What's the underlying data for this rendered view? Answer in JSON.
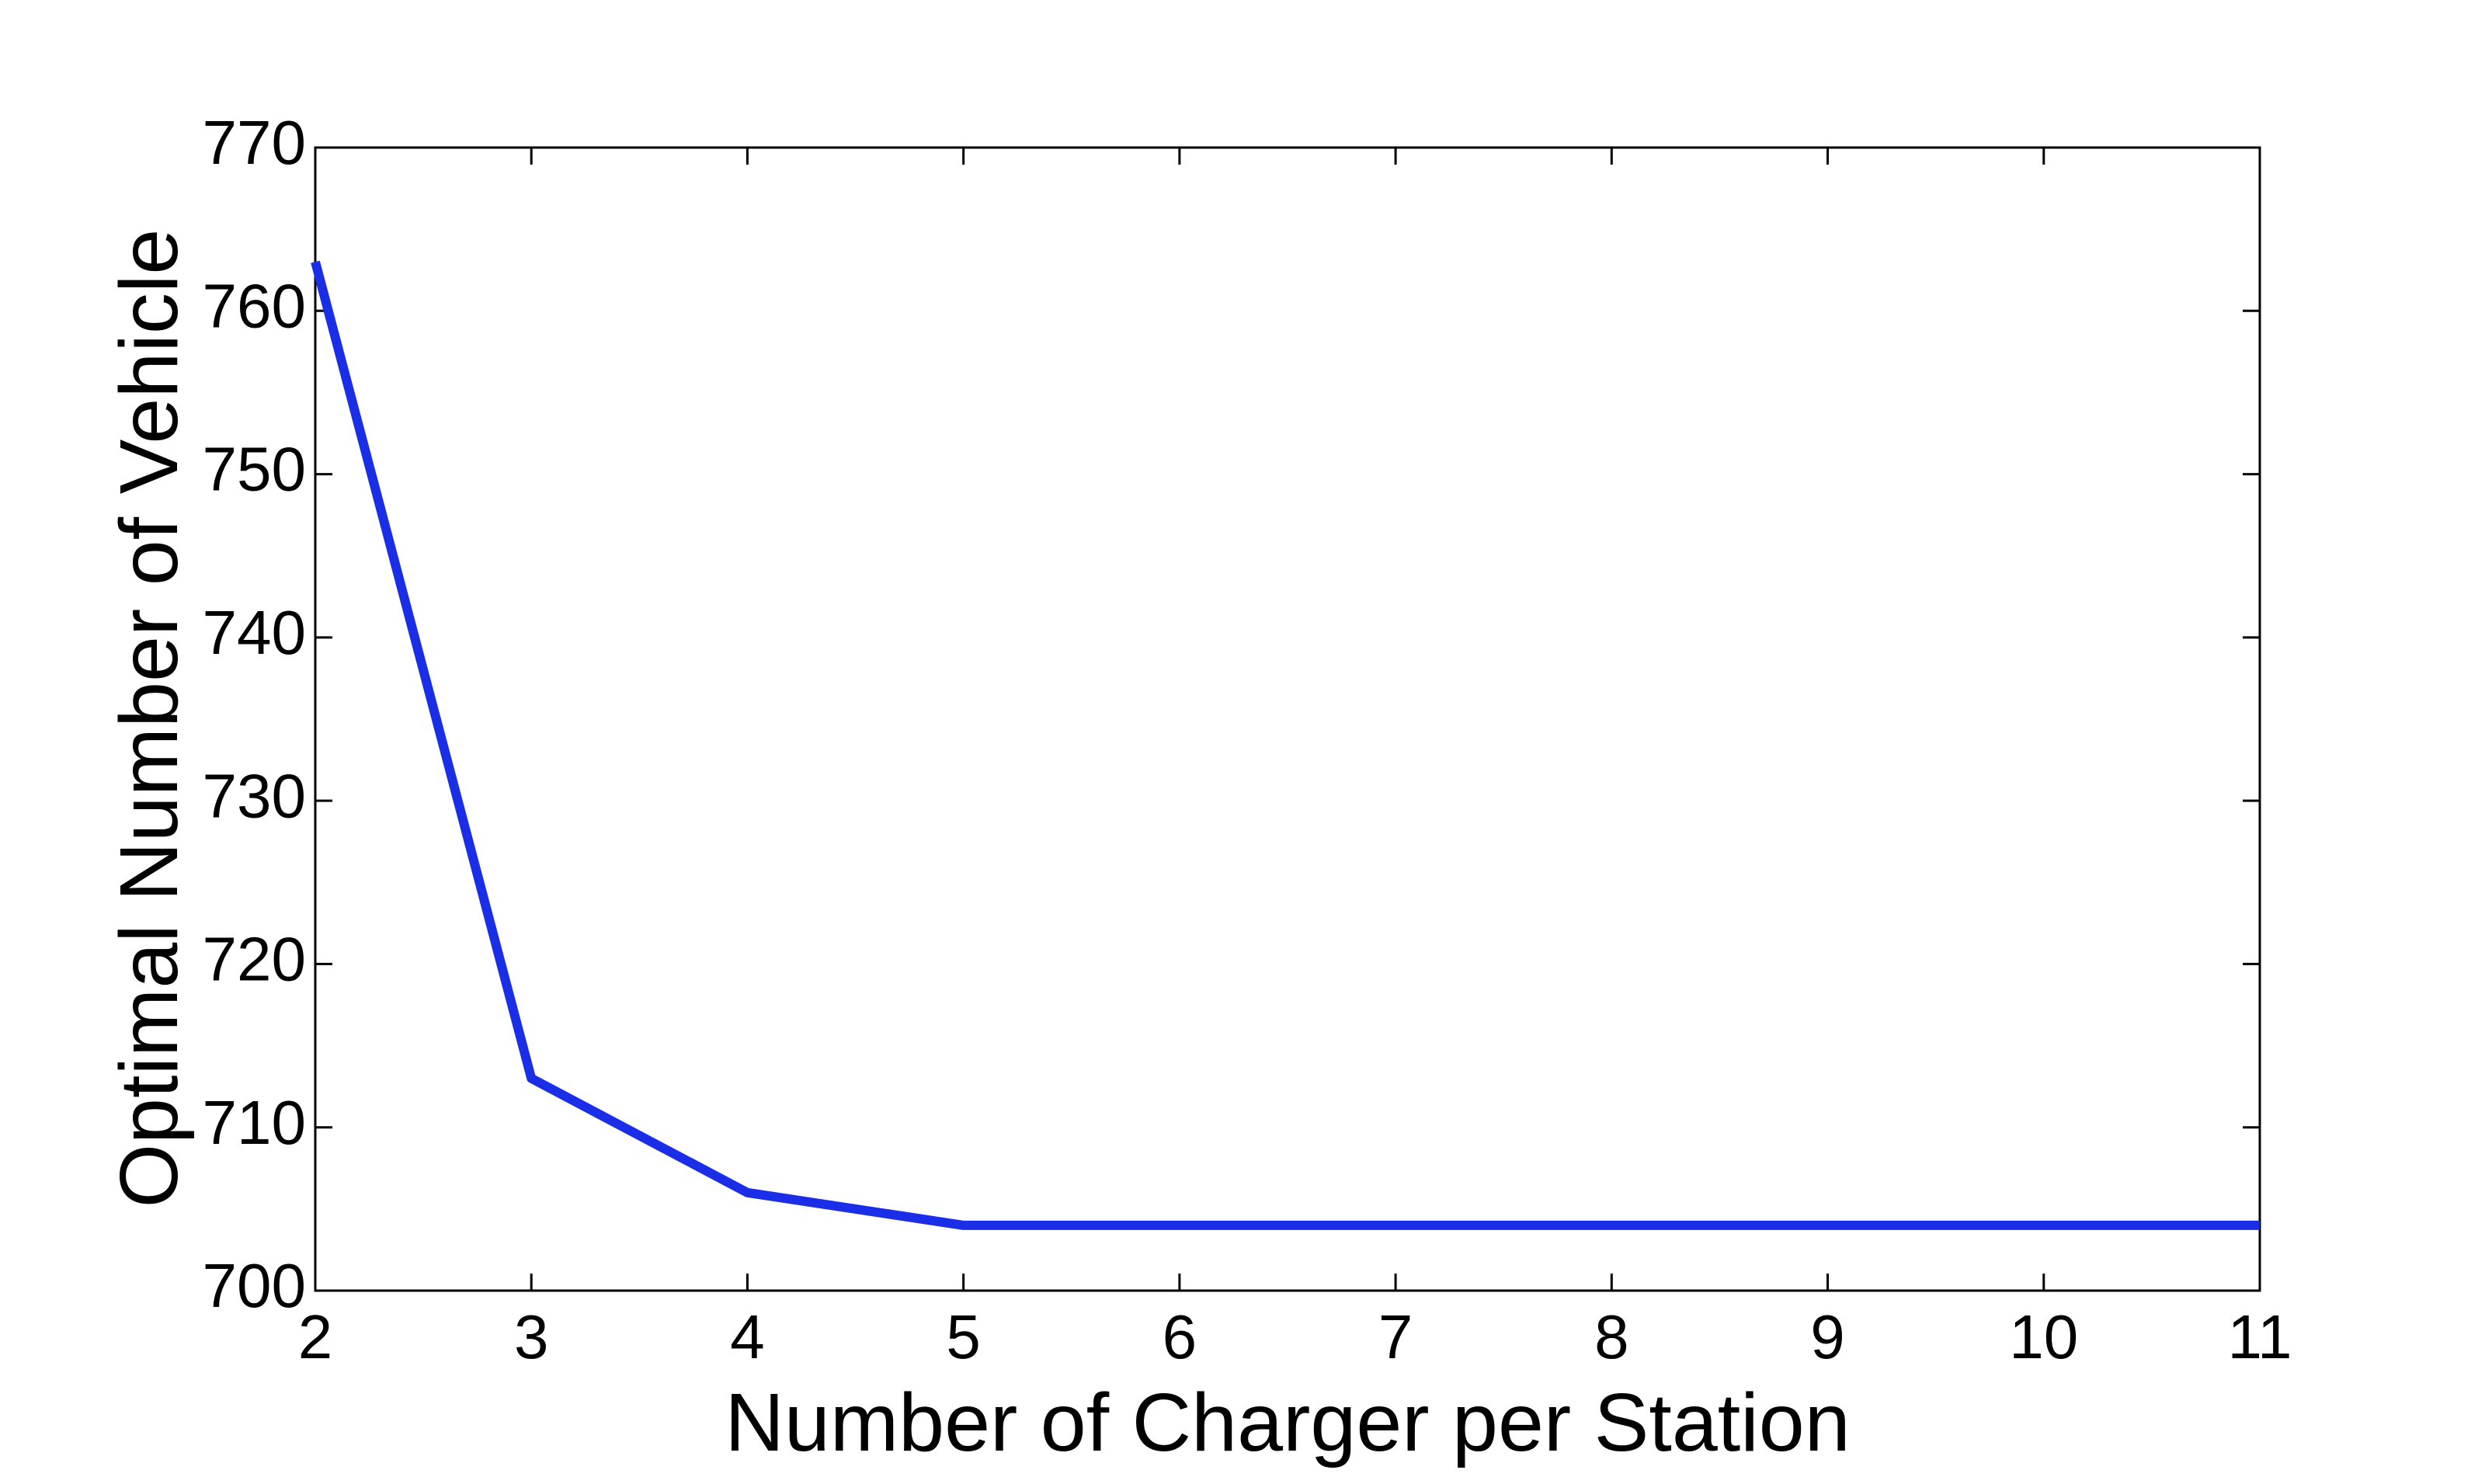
{
  "chart_data": {
    "type": "line",
    "xlabel": "Number of Charger per Station",
    "ylabel": "Optimal Number of Vehicle",
    "x": [
      2,
      3,
      4,
      5,
      6,
      7,
      8,
      9,
      10,
      11
    ],
    "series": [
      {
        "name": "Optimal Number of Vehicle",
        "color": "#1a2ee8",
        "values": [
          763,
          713,
          706,
          704,
          704,
          704,
          704,
          704,
          704,
          704
        ]
      }
    ],
    "xlim": [
      2,
      11
    ],
    "xticks": [
      2,
      3,
      4,
      5,
      6,
      7,
      8,
      9,
      10,
      11
    ],
    "ylim": [
      700,
      770
    ],
    "yticks": [
      700,
      710,
      720,
      730,
      740,
      750,
      760,
      770
    ],
    "grid": false
  }
}
